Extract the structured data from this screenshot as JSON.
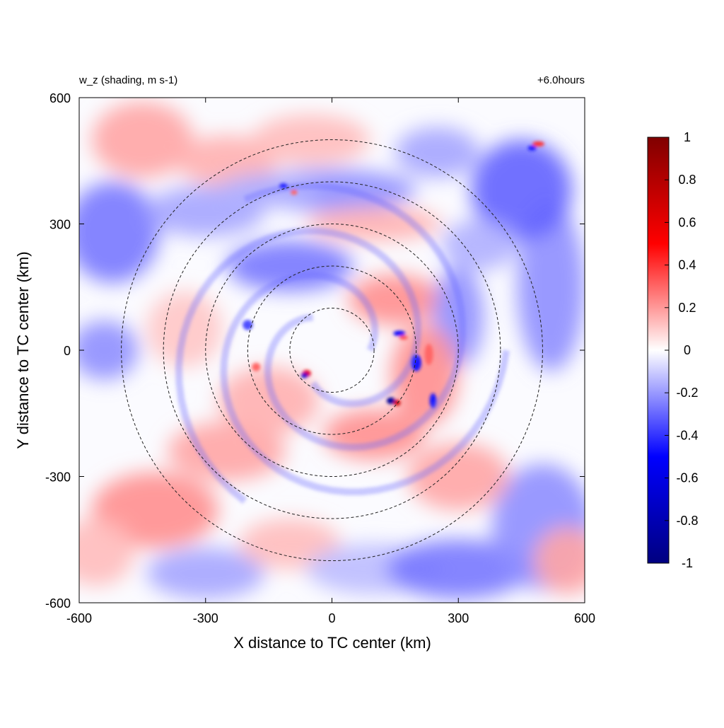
{
  "chart_data": {
    "type": "heatmap",
    "title_left": "w_z (shading, m s-1)",
    "title_right": "+6.0hours",
    "xlabel": "X distance to TC center (km)",
    "ylabel": "Y distance to TC center (km)",
    "xlim": [
      -600,
      600
    ],
    "ylim": [
      -600,
      600
    ],
    "x_ticks": [
      "-600",
      "-300",
      "0",
      "300",
      "600"
    ],
    "y_ticks": [
      "-600",
      "-300",
      "0",
      "300",
      "600"
    ],
    "colorbar": {
      "range": [
        -1,
        1
      ],
      "ticks": [
        "-1",
        "-0.8",
        "-0.6",
        "-0.4",
        "-0.2",
        "0",
        "0.2",
        "0.4",
        "0.6",
        "0.8",
        "1"
      ],
      "colors": {
        "min": "#000080",
        "low": "#0000ff",
        "mid": "#ffffff",
        "high": "#ff0000",
        "max": "#800000"
      }
    },
    "range_rings_km": [
      100,
      200,
      300,
      400,
      500
    ],
    "ring_style": "dashed",
    "grid": false
  }
}
